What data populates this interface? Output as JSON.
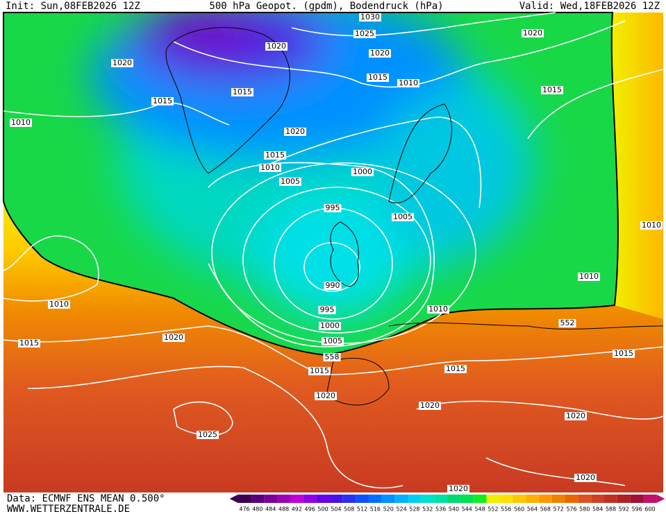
{
  "header": {
    "init": "Init: Sun,08FEB2026 12Z",
    "title": "500 hPa Geopot. (gpdm), Bodendruck (hPa)",
    "valid": "Valid: Wed,18FEB2026 12Z"
  },
  "isobar_labels": [
    "1030",
    "1025",
    "1020",
    "1020",
    "1020",
    "1020",
    "1015",
    "1010",
    "1015",
    "1015",
    "1015",
    "1010",
    "1020",
    "1015",
    "1010",
    "1000",
    "1005",
    "995",
    "1005",
    "1010",
    "990",
    "1010",
    "1010",
    "995",
    "1010",
    "552",
    "1000",
    "1015",
    "1020",
    "1005",
    "558",
    "1015",
    "1015",
    "1015",
    "1020",
    "1020",
    "1020",
    "1025",
    "1020",
    "1020"
  ],
  "footer": {
    "data": "Data: ECMWF ENS MEAN 0.500°",
    "site": "WWW.WETTERZENTRALE.DE"
  },
  "colorbar": {
    "ticks": [
      476,
      480,
      484,
      488,
      492,
      496,
      500,
      504,
      508,
      512,
      516,
      520,
      524,
      528,
      532,
      536,
      540,
      544,
      548,
      552,
      556,
      560,
      564,
      568,
      572,
      576,
      580,
      584,
      588,
      592,
      596,
      600
    ],
    "colors": [
      "#3d0050",
      "#5a0078",
      "#7a0096",
      "#9a00b4",
      "#bb00d6",
      "#9000e0",
      "#6a00e6",
      "#4a10e8",
      "#2a30f0",
      "#1050f8",
      "#0070ff",
      "#0090ff",
      "#00b0ff",
      "#00d0f0",
      "#00e0d0",
      "#00e0a0",
      "#00d870",
      "#00e050",
      "#10f020",
      "#f0f000",
      "#ffe000",
      "#ffc800",
      "#ffb000",
      "#ff9800",
      "#f08000",
      "#e86800",
      "#e05020",
      "#d04020",
      "#c03020",
      "#b02020",
      "#a01030",
      "#c0106a"
    ]
  }
}
